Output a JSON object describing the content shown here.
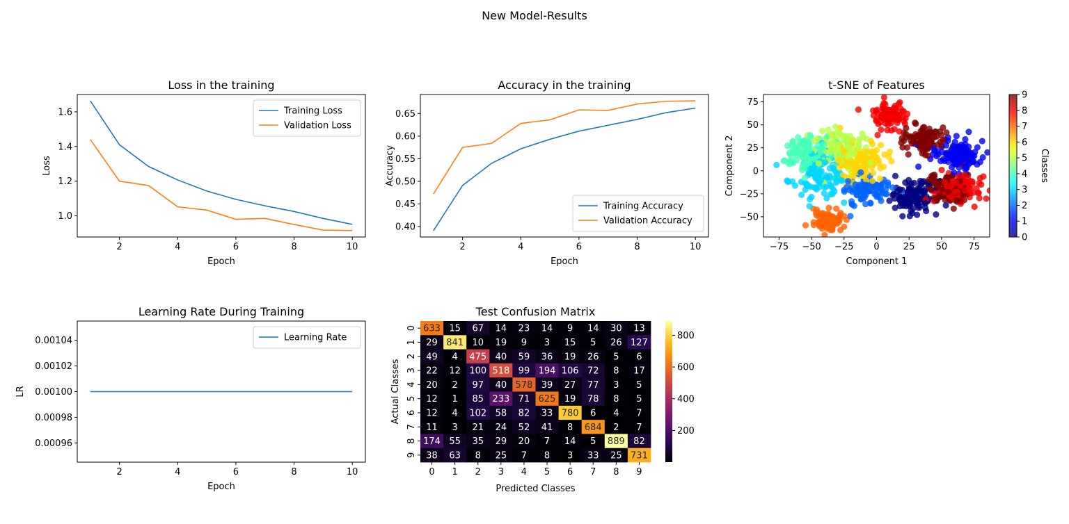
{
  "suptitle": "New Model-Results",
  "colors": {
    "blue": "#1f77b4",
    "orange": "#ff7f0e"
  },
  "chart_data": [
    {
      "id": "loss",
      "type": "line",
      "title": "Loss in the training",
      "xlabel": "Epoch",
      "ylabel": "Loss",
      "x": [
        1,
        2,
        3,
        4,
        5,
        6,
        7,
        8,
        9,
        10
      ],
      "series": [
        {
          "name": "Training Loss",
          "color": "#1f77b4",
          "values": [
            1.663,
            1.41,
            1.285,
            1.207,
            1.143,
            1.095,
            1.058,
            1.025,
            0.985,
            0.951
          ]
        },
        {
          "name": "Validation Loss",
          "color": "#ff7f0e",
          "values": [
            1.44,
            1.2,
            1.175,
            1.052,
            1.033,
            0.98,
            0.985,
            0.95,
            0.918,
            0.915
          ]
        }
      ],
      "xlim": [
        0.55,
        10.45
      ],
      "ylim": [
        0.878,
        1.7
      ],
      "xticks": [
        2,
        4,
        6,
        8,
        10
      ],
      "yticks": [
        1.0,
        1.2,
        1.4,
        1.6
      ],
      "ytick_labels": [
        "1.0",
        "1.2",
        "1.4",
        "1.6"
      ],
      "legend": "upper right",
      "grid": false
    },
    {
      "id": "acc",
      "type": "line",
      "title": "Accuracy in the training",
      "xlabel": "Epoch",
      "ylabel": "Accuracy",
      "x": [
        1,
        2,
        3,
        4,
        5,
        6,
        7,
        8,
        9,
        10
      ],
      "series": [
        {
          "name": "Training Accuracy",
          "color": "#1f77b4",
          "values": [
            0.391,
            0.491,
            0.54,
            0.572,
            0.593,
            0.611,
            0.624,
            0.637,
            0.652,
            0.662
          ]
        },
        {
          "name": "Validation Accuracy",
          "color": "#ff7f0e",
          "values": [
            0.472,
            0.575,
            0.584,
            0.628,
            0.636,
            0.658,
            0.657,
            0.671,
            0.677,
            0.678
          ]
        }
      ],
      "xlim": [
        0.55,
        10.45
      ],
      "ylim": [
        0.377,
        0.692
      ],
      "xticks": [
        2,
        4,
        6,
        8,
        10
      ],
      "yticks": [
        0.4,
        0.45,
        0.5,
        0.55,
        0.6,
        0.65
      ],
      "ytick_labels": [
        "0.40",
        "0.45",
        "0.50",
        "0.55",
        "0.60",
        "0.65"
      ],
      "legend": "lower right",
      "grid": false
    },
    {
      "id": "tsne",
      "type": "scatter",
      "title": "t-SNE of Features",
      "xlabel": "Component 1",
      "ylabel": "Component 2",
      "xlim": [
        -87,
        87
      ],
      "ylim": [
        -72,
        83
      ],
      "xticks": [
        -75,
        -50,
        -25,
        0,
        25,
        50,
        75
      ],
      "yticks": [
        -50,
        -25,
        0,
        25,
        50,
        75
      ],
      "colormap": "jet",
      "colorbar": {
        "label": "Classes",
        "ticks": [
          0,
          1,
          2,
          3,
          4,
          5,
          6,
          7,
          8,
          9
        ],
        "range": [
          0,
          9
        ]
      },
      "clusters": [
        {
          "class": 0,
          "cx": 28,
          "cy": -28,
          "spread": 11,
          "n": 120
        },
        {
          "class": 1,
          "cx": 62,
          "cy": 18,
          "spread": 11,
          "n": 120
        },
        {
          "class": 2,
          "cx": -10,
          "cy": -22,
          "spread": 12,
          "n": 90
        },
        {
          "class": 3,
          "cx": -45,
          "cy": -5,
          "spread": 14,
          "n": 110
        },
        {
          "class": 4,
          "cx": -55,
          "cy": 20,
          "spread": 12,
          "n": 110
        },
        {
          "class": 5,
          "cx": -28,
          "cy": 25,
          "spread": 14,
          "n": 110
        },
        {
          "class": 6,
          "cx": -12,
          "cy": 10,
          "spread": 13,
          "n": 110
        },
        {
          "class": 7,
          "cx": -37,
          "cy": -55,
          "spread": 7,
          "n": 90
        },
        {
          "class": 8,
          "cx": 10,
          "cy": 60,
          "spread": 9,
          "n": 90
        },
        {
          "class": 9,
          "cx": 38,
          "cy": 35,
          "spread": 9,
          "n": 110
        },
        {
          "class": 9,
          "cx": 55,
          "cy": -20,
          "spread": 10,
          "n": 110
        },
        {
          "class": 8,
          "cx": 62,
          "cy": -22,
          "spread": 10,
          "n": 100
        }
      ]
    },
    {
      "id": "lr",
      "type": "line",
      "title": "Learning Rate During Training",
      "xlabel": "Epoch",
      "ylabel": "LR",
      "x": [
        1,
        2,
        3,
        4,
        5,
        6,
        7,
        8,
        9,
        10
      ],
      "series": [
        {
          "name": "Learning Rate",
          "color": "#1f77b4",
          "values": [
            0.001,
            0.001,
            0.001,
            0.001,
            0.001,
            0.001,
            0.001,
            0.001,
            0.001,
            0.001
          ]
        }
      ],
      "xlim": [
        0.55,
        10.45
      ],
      "ylim": [
        0.000945,
        0.001055
      ],
      "xticks": [
        2,
        4,
        6,
        8,
        10
      ],
      "yticks": [
        0.00096,
        0.00098,
        0.001,
        0.00102,
        0.00104
      ],
      "ytick_labels": [
        "0.00096",
        "0.00098",
        "0.00100",
        "0.00102",
        "0.00104"
      ],
      "legend": "upper right",
      "grid": false
    },
    {
      "id": "cm",
      "type": "heatmap",
      "title": "Test Confusion Matrix",
      "xlabel": "Predicted Classes",
      "ylabel": "Actual Classes",
      "colormap": "inferno",
      "xticklabels": [
        "0",
        "1",
        "2",
        "3",
        "4",
        "5",
        "6",
        "7",
        "8",
        "9"
      ],
      "yticklabels": [
        "0",
        "1",
        "2",
        "3",
        "4",
        "5",
        "6",
        "7",
        "8",
        "9"
      ],
      "colorbar": {
        "ticks": [
          200,
          400,
          600,
          800
        ],
        "range": [
          1,
          889
        ]
      },
      "matrix": [
        [
          633,
          15,
          67,
          14,
          23,
          14,
          9,
          14,
          30,
          13
        ],
        [
          29,
          841,
          10,
          19,
          9,
          3,
          15,
          5,
          26,
          127
        ],
        [
          49,
          4,
          475,
          40,
          59,
          36,
          19,
          26,
          5,
          6
        ],
        [
          22,
          12,
          100,
          518,
          99,
          194,
          106,
          72,
          8,
          17
        ],
        [
          20,
          2,
          97,
          40,
          578,
          39,
          27,
          77,
          3,
          5
        ],
        [
          12,
          1,
          85,
          233,
          71,
          625,
          19,
          78,
          8,
          5
        ],
        [
          12,
          4,
          102,
          58,
          82,
          33,
          780,
          6,
          4,
          7
        ],
        [
          11,
          3,
          21,
          24,
          52,
          41,
          8,
          684,
          2,
          7
        ],
        [
          174,
          55,
          35,
          29,
          20,
          7,
          14,
          5,
          889,
          82
        ],
        [
          38,
          63,
          8,
          25,
          7,
          8,
          3,
          33,
          25,
          731
        ]
      ]
    }
  ]
}
